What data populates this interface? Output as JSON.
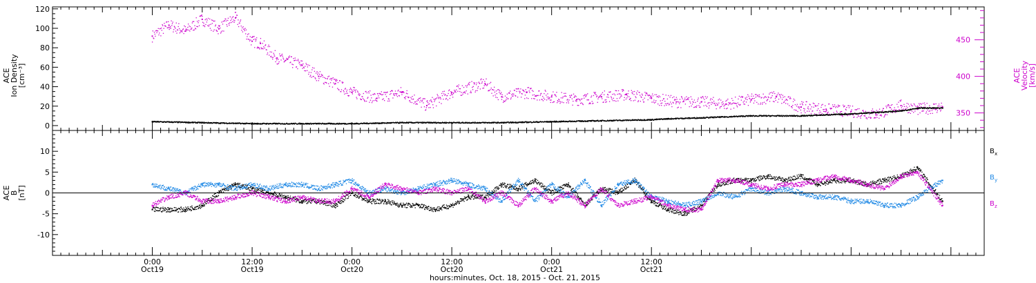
{
  "colors": {
    "density": "#000000",
    "velocity": "#cc00cc",
    "bx": "#000000",
    "by": "#1e88e5",
    "bz": "#cc00cc",
    "axis": "#000000"
  },
  "chart_data": [
    {
      "type": "scatter",
      "panel": "top",
      "left_axis": {
        "label_lines": [
          "ACE",
          "Ion Density",
          "[cm⁻³]"
        ],
        "range": [
          -5,
          122
        ],
        "ticks": [
          0,
          20,
          40,
          60,
          80,
          100,
          120
        ]
      },
      "right_axis": {
        "label_lines": [
          "ACE",
          "Velocity",
          "[km/s]"
        ],
        "range": [
          326,
          495
        ],
        "ticks": [
          350,
          400,
          450
        ]
      },
      "series": [
        {
          "axis": "left",
          "x": [
            0,
            6,
            12,
            18,
            24,
            30,
            36,
            42,
            48,
            54,
            60,
            62,
            66,
            72,
            78,
            84,
            90,
            92,
            95
          ],
          "y": [
            4,
            3,
            2,
            2,
            2,
            3,
            3,
            3,
            4,
            5,
            6,
            7,
            8,
            10,
            10,
            12,
            15,
            18,
            18
          ]
        },
        {
          "axis": "right",
          "x": [
            0,
            2,
            4,
            6,
            8,
            10,
            12,
            13,
            15,
            18,
            20,
            22,
            24,
            27,
            30,
            33,
            36,
            40,
            42,
            45,
            48,
            51,
            54,
            57,
            60,
            63,
            66,
            69,
            72,
            75,
            78,
            81,
            84,
            87,
            90,
            92,
            95
          ],
          "y": [
            455,
            470,
            462,
            478,
            465,
            480,
            448,
            445,
            425,
            415,
            400,
            390,
            378,
            370,
            378,
            360,
            378,
            390,
            372,
            378,
            372,
            368,
            372,
            375,
            370,
            365,
            365,
            362,
            368,
            372,
            358,
            355,
            352,
            348,
            360,
            355,
            358
          ]
        }
      ]
    },
    {
      "type": "scatter",
      "panel": "bottom",
      "left_axis": {
        "label_lines": [
          "ACE",
          "B",
          "[nT]"
        ],
        "range": [
          -15,
          15
        ],
        "ticks": [
          -10,
          -5,
          0,
          5,
          10
        ]
      },
      "series": [
        {
          "name": "Bx",
          "x": [
            0,
            2,
            4,
            6,
            8,
            10,
            12,
            14,
            16,
            18,
            20,
            22,
            24,
            26,
            28,
            30,
            32,
            34,
            36,
            38,
            40,
            42,
            44,
            46,
            48,
            50,
            52,
            54,
            56,
            58,
            60,
            62,
            64,
            66,
            68,
            70,
            72,
            74,
            76,
            78,
            80,
            82,
            84,
            86,
            88,
            90,
            92,
            95
          ],
          "y": [
            -4,
            -4,
            -4,
            -3,
            0,
            2,
            1,
            0,
            -1,
            -2,
            -2,
            -3,
            0,
            -2,
            -2,
            -3,
            -3,
            -4,
            -3,
            -1,
            -1,
            2,
            1,
            3,
            0,
            2,
            -3,
            1,
            0,
            3,
            -2,
            -4,
            -5,
            -3,
            2,
            3,
            3,
            4,
            3,
            4,
            2,
            3,
            3,
            2,
            3,
            4,
            6,
            -2
          ]
        },
        {
          "name": "By",
          "x": [
            0,
            2,
            4,
            6,
            8,
            10,
            12,
            14,
            16,
            18,
            20,
            22,
            24,
            26,
            28,
            30,
            32,
            34,
            36,
            38,
            40,
            42,
            44,
            46,
            48,
            50,
            52,
            54,
            56,
            58,
            60,
            62,
            64,
            66,
            68,
            70,
            72,
            74,
            76,
            78,
            80,
            82,
            84,
            86,
            88,
            90,
            92,
            95
          ],
          "y": [
            2,
            1,
            0,
            2,
            2,
            1,
            2,
            1,
            2,
            2,
            1,
            2,
            3,
            0,
            1,
            0,
            1,
            2,
            3,
            2,
            1,
            -2,
            3,
            -2,
            2,
            -1,
            3,
            -3,
            2,
            3,
            -1,
            -2,
            -3,
            -2,
            0,
            -1,
            1,
            0,
            1,
            0,
            -1,
            -1,
            -2,
            -2,
            -3,
            -3,
            -1,
            3
          ]
        },
        {
          "name": "Bz",
          "x": [
            0,
            2,
            4,
            6,
            8,
            10,
            12,
            14,
            16,
            18,
            20,
            22,
            24,
            26,
            28,
            30,
            32,
            34,
            36,
            38,
            40,
            42,
            44,
            46,
            48,
            50,
            52,
            54,
            56,
            58,
            60,
            62,
            64,
            66,
            68,
            70,
            72,
            74,
            76,
            78,
            80,
            82,
            84,
            86,
            88,
            90,
            92,
            95
          ],
          "y": [
            -3,
            -1,
            0,
            -2,
            -2,
            -1,
            0,
            -1,
            -2,
            -1,
            -2,
            -2,
            1,
            -1,
            2,
            1,
            0,
            1,
            0,
            1,
            -2,
            0,
            -3,
            1,
            -2,
            0,
            -3,
            1,
            -3,
            -2,
            -1,
            -3,
            -4,
            -4,
            3,
            3,
            2,
            1,
            2,
            2,
            3,
            4,
            3,
            2,
            1,
            4,
            5,
            -3
          ]
        }
      ],
      "legend": [
        "B",
        "B",
        "B"
      ],
      "legend_subscripts": [
        "x",
        "y",
        "z"
      ]
    }
  ],
  "time_axis": {
    "range_hours": [
      -12,
      100
    ],
    "major_ticks": [
      {
        "hour": 0,
        "time": "0:00",
        "day": "Oct19"
      },
      {
        "hour": 12,
        "time": "12:00",
        "day": "Oct19"
      },
      {
        "hour": 24,
        "time": "0:00",
        "day": "Oct20"
      },
      {
        "hour": 36,
        "time": "12:00",
        "day": "Oct20"
      },
      {
        "hour": 48,
        "time": "0:00",
        "day": "Oct21"
      },
      {
        "hour": 60,
        "time": "12:00",
        "day": "Oct21"
      }
    ],
    "xlabel": "hours:minutes, Oct. 18, 2015 - Oct. 21, 2015"
  }
}
